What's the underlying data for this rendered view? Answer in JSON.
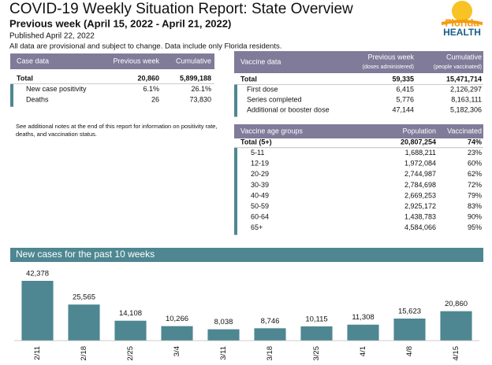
{
  "header": {
    "title": "COVID-19 Weekly Situation Report: State Overview",
    "subtitle": "Previous week (April 15, 2022 - April 21, 2022)",
    "published": "Published April 22, 2022",
    "disclaimer": "All data are provisional and subject to change. Data include only Florida residents."
  },
  "logo": [
    "Florida",
    "HEALTH"
  ],
  "case_table": {
    "columns": [
      "Case data",
      "Previous week",
      "Cumulative"
    ],
    "rows": [
      [
        "Total",
        "20,860",
        "5,899,188"
      ],
      [
        "New case positivity",
        "6.1%",
        "26.1%"
      ],
      [
        "Deaths",
        "26",
        "73,830"
      ]
    ]
  },
  "vaccine_table": {
    "columns": [
      "Vaccine data",
      "Previous week",
      "Cumulative"
    ],
    "subcolumns": [
      "(doses administered)",
      "(people vaccinated)"
    ],
    "rows": [
      [
        "Total",
        "59,335",
        "15,471,714"
      ],
      [
        "First dose",
        "6,415",
        "2,126,297"
      ],
      [
        "Series completed",
        "5,776",
        "8,163,111"
      ],
      [
        "Additional or booster dose",
        "47,144",
        "5,182,306"
      ]
    ]
  },
  "note": [
    "See additional notes at the end of this report for information on positivity rate,",
    "deaths, and vaccination status."
  ],
  "age_table": {
    "columns": [
      "Vaccine age groups",
      "Population",
      "Vaccinated"
    ],
    "rows": [
      [
        "Total (5+)",
        "20,807,254",
        "74%"
      ],
      [
        "5-11",
        "1,688,211",
        "23%"
      ],
      [
        "12-19",
        "1,972,084",
        "60%"
      ],
      [
        "20-29",
        "2,744,987",
        "62%"
      ],
      [
        "30-39",
        "2,784,698",
        "72%"
      ],
      [
        "40-49",
        "2,669,253",
        "79%"
      ],
      [
        "50-59",
        "2,925,172",
        "83%"
      ],
      [
        "60-64",
        "1,438,783",
        "90%"
      ],
      [
        "65+",
        "4,584,066",
        "95%"
      ]
    ]
  },
  "chart_data": {
    "type": "bar",
    "title": "New cases for the past 10 weeks",
    "categories": [
      "2/11",
      "2/18",
      "2/25",
      "3/4",
      "3/11",
      "3/18",
      "3/25",
      "4/1",
      "4/8",
      "4/15"
    ],
    "values": [
      42378,
      25565,
      14108,
      10266,
      8038,
      8746,
      10115,
      11308,
      15623,
      20860
    ],
    "value_labels": [
      "42,378",
      "25,565",
      "14,108",
      "10,266",
      "8,038",
      "8,746",
      "10,115",
      "11,308",
      "15,623",
      "20,860"
    ],
    "color": "#4e8791"
  }
}
